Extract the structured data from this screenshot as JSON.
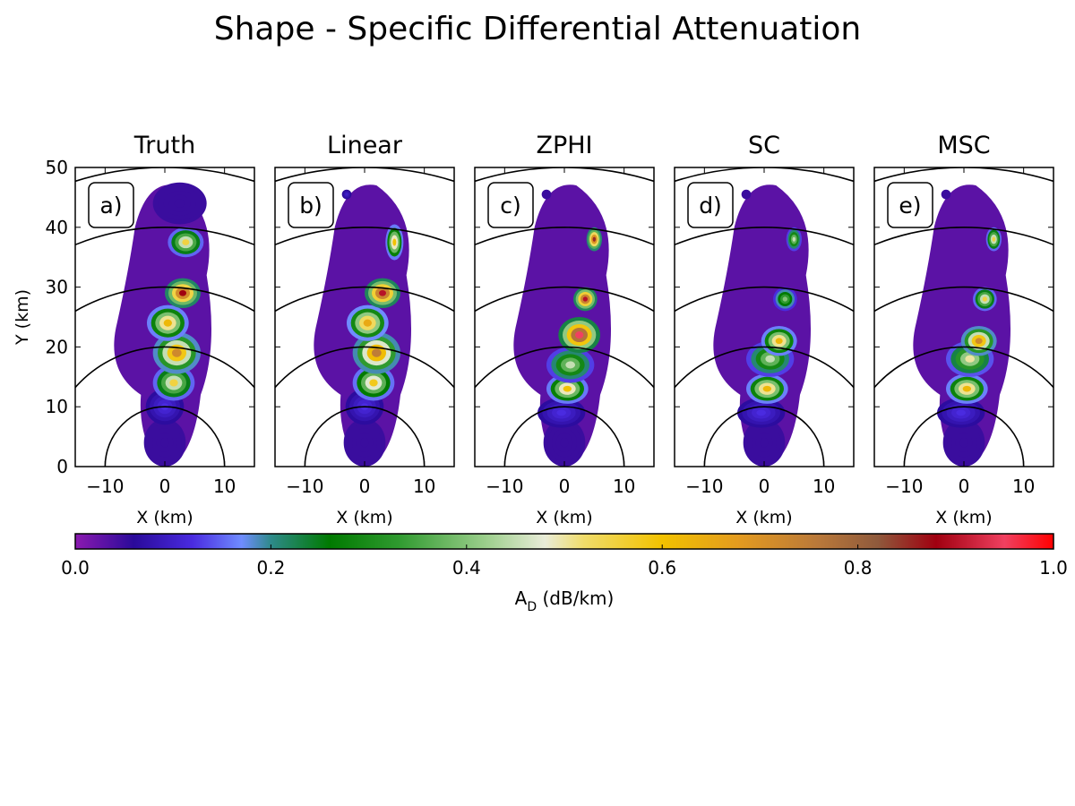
{
  "figure": {
    "title": "Shape - Specific Differential Attenuation"
  },
  "chart_data": [
    {
      "type": "heatmap",
      "panel_id": "a)",
      "title": "Truth",
      "xlabel": "X (km)",
      "ylabel": "Y (km)",
      "xlim": [
        -15,
        15
      ],
      "ylim": [
        0,
        50
      ],
      "xticks": [
        -10,
        0,
        10
      ],
      "yticks": [
        0,
        10,
        20,
        30,
        40,
        50
      ],
      "range_rings_km": [
        10,
        20,
        30,
        40,
        50
      ],
      "blobs": [
        {
          "x": 0,
          "y": 4,
          "rx": 3.5,
          "ry": 4,
          "v": 0.05
        },
        {
          "x": 0,
          "y": 10,
          "rx": 3.2,
          "ry": 3,
          "v": 0.12
        },
        {
          "x": 1.5,
          "y": 14,
          "rx": 3.5,
          "ry": 3,
          "v": 0.55
        },
        {
          "x": 2,
          "y": 19,
          "rx": 4,
          "ry": 3.5,
          "v": 0.72
        },
        {
          "x": 0.5,
          "y": 24,
          "rx": 3.5,
          "ry": 3,
          "v": 0.62
        },
        {
          "x": 3,
          "y": 29,
          "rx": 3,
          "ry": 2.5,
          "v": 0.88
        },
        {
          "x": 3.5,
          "y": 37.5,
          "rx": 3,
          "ry": 2.5,
          "v": 0.55
        },
        {
          "x": 2.5,
          "y": 44,
          "rx": 4.5,
          "ry": 3.5,
          "v": 0.05
        }
      ]
    },
    {
      "type": "heatmap",
      "panel_id": "b)",
      "title": "Linear",
      "xlabel": "X (km)",
      "xlim": [
        -15,
        15
      ],
      "ylim": [
        0,
        50
      ],
      "xticks": [
        -10,
        0,
        10
      ],
      "range_rings_km": [
        10,
        20,
        30,
        40,
        50
      ],
      "blobs": [
        {
          "x": 0,
          "y": 4,
          "rx": 3.5,
          "ry": 4,
          "v": 0.05
        },
        {
          "x": 0,
          "y": 10,
          "rx": 3.2,
          "ry": 3,
          "v": 0.12
        },
        {
          "x": 1.5,
          "y": 14,
          "rx": 3.5,
          "ry": 3,
          "v": 0.58
        },
        {
          "x": 2,
          "y": 19,
          "rx": 4,
          "ry": 3.5,
          "v": 0.75
        },
        {
          "x": 0.5,
          "y": 24,
          "rx": 3.5,
          "ry": 3,
          "v": 0.65
        },
        {
          "x": 3,
          "y": 29,
          "rx": 3,
          "ry": 2.5,
          "v": 0.9
        },
        {
          "x": 5,
          "y": 37.5,
          "rx": 1.5,
          "ry": 3,
          "v": 0.6
        },
        {
          "x": -3,
          "y": 45.5,
          "rx": 0.8,
          "ry": 0.8,
          "v": 0.1
        }
      ]
    },
    {
      "type": "heatmap",
      "panel_id": "c)",
      "title": "ZPHI",
      "xlabel": "X (km)",
      "xlim": [
        -15,
        15
      ],
      "ylim": [
        0,
        50
      ],
      "xticks": [
        -10,
        0,
        10
      ],
      "range_rings_km": [
        10,
        20,
        30,
        40,
        50
      ],
      "blobs": [
        {
          "x": 0,
          "y": 4,
          "rx": 3.5,
          "ry": 4,
          "v": 0.05
        },
        {
          "x": -0.5,
          "y": 9,
          "rx": 4,
          "ry": 2.5,
          "v": 0.12
        },
        {
          "x": 0.5,
          "y": 13,
          "rx": 3.5,
          "ry": 2.5,
          "v": 0.6
        },
        {
          "x": 1,
          "y": 17,
          "rx": 4,
          "ry": 3,
          "v": 0.45
        },
        {
          "x": 2.5,
          "y": 22,
          "rx": 3.5,
          "ry": 3,
          "v": 0.95
        },
        {
          "x": 3.5,
          "y": 28,
          "rx": 2,
          "ry": 2,
          "v": 0.9
        },
        {
          "x": 5,
          "y": 38,
          "rx": 1.3,
          "ry": 2,
          "v": 0.85
        },
        {
          "x": -3,
          "y": 45.5,
          "rx": 0.8,
          "ry": 0.8,
          "v": 0.05
        }
      ]
    },
    {
      "type": "heatmap",
      "panel_id": "d)",
      "title": "SC",
      "xlabel": "X (km)",
      "xlim": [
        -15,
        15
      ],
      "ylim": [
        0,
        50
      ],
      "xticks": [
        -10,
        0,
        10
      ],
      "range_rings_km": [
        10,
        20,
        30,
        40,
        50
      ],
      "blobs": [
        {
          "x": 0,
          "y": 4,
          "rx": 3.5,
          "ry": 4,
          "v": 0.05
        },
        {
          "x": -0.5,
          "y": 9,
          "rx": 4,
          "ry": 2.5,
          "v": 0.12
        },
        {
          "x": 0.5,
          "y": 13,
          "rx": 3.5,
          "ry": 2.5,
          "v": 0.62
        },
        {
          "x": 1,
          "y": 18,
          "rx": 4,
          "ry": 3,
          "v": 0.45
        },
        {
          "x": 2.5,
          "y": 21,
          "rx": 3,
          "ry": 2.5,
          "v": 0.62
        },
        {
          "x": 3.5,
          "y": 28,
          "rx": 2,
          "ry": 2,
          "v": 0.4
        },
        {
          "x": 5,
          "y": 38,
          "rx": 1.3,
          "ry": 2,
          "v": 0.45
        },
        {
          "x": -3,
          "y": 45.5,
          "rx": 0.8,
          "ry": 0.8,
          "v": 0.05
        }
      ]
    },
    {
      "type": "heatmap",
      "panel_id": "e)",
      "title": "MSC",
      "xlabel": "X (km)",
      "xlim": [
        -15,
        15
      ],
      "ylim": [
        0,
        50
      ],
      "xticks": [
        -10,
        0,
        10
      ],
      "range_rings_km": [
        10,
        20,
        30,
        40,
        50
      ],
      "blobs": [
        {
          "x": 0,
          "y": 4,
          "rx": 3.5,
          "ry": 4,
          "v": 0.05
        },
        {
          "x": -0.5,
          "y": 9,
          "rx": 4,
          "ry": 2.5,
          "v": 0.12
        },
        {
          "x": 0.5,
          "y": 13,
          "rx": 3.5,
          "ry": 2.5,
          "v": 0.62
        },
        {
          "x": 1,
          "y": 18,
          "rx": 4,
          "ry": 3,
          "v": 0.5
        },
        {
          "x": 2.5,
          "y": 21,
          "rx": 3,
          "ry": 2.5,
          "v": 0.72
        },
        {
          "x": 3.5,
          "y": 28,
          "rx": 2,
          "ry": 2,
          "v": 0.55
        },
        {
          "x": 5,
          "y": 38,
          "rx": 1.3,
          "ry": 2,
          "v": 0.55
        },
        {
          "x": -3,
          "y": 45.5,
          "rx": 0.8,
          "ry": 0.8,
          "v": 0.05
        }
      ]
    }
  ],
  "colorbar": {
    "label_main": "A",
    "label_sub": "D",
    "label_units": " (dB/km)",
    "min": 0.0,
    "max": 1.0,
    "ticks": [
      "0.0",
      "0.2",
      "0.4",
      "0.6",
      "0.8",
      "1.0"
    ],
    "tick_values": [
      0.0,
      0.2,
      0.4,
      0.6,
      0.8,
      1.0
    ],
    "colors": [
      {
        "v": 0.0,
        "c": "#8b1ab0"
      },
      {
        "v": 0.06,
        "c": "#2a0a9a"
      },
      {
        "v": 0.12,
        "c": "#4a2be0"
      },
      {
        "v": 0.17,
        "c": "#6f8cff"
      },
      {
        "v": 0.2,
        "c": "#2e8a8a"
      },
      {
        "v": 0.26,
        "c": "#007a00"
      },
      {
        "v": 0.33,
        "c": "#2f9a2f"
      },
      {
        "v": 0.42,
        "c": "#9ccf8c"
      },
      {
        "v": 0.48,
        "c": "#e9ecd8"
      },
      {
        "v": 0.52,
        "c": "#f0dc6a"
      },
      {
        "v": 0.6,
        "c": "#f2c200"
      },
      {
        "v": 0.68,
        "c": "#e39a20"
      },
      {
        "v": 0.76,
        "c": "#b9783a"
      },
      {
        "v": 0.82,
        "c": "#8f5a3c"
      },
      {
        "v": 0.88,
        "c": "#a00010"
      },
      {
        "v": 0.95,
        "c": "#f04060"
      },
      {
        "v": 1.0,
        "c": "#ff0000"
      }
    ]
  }
}
